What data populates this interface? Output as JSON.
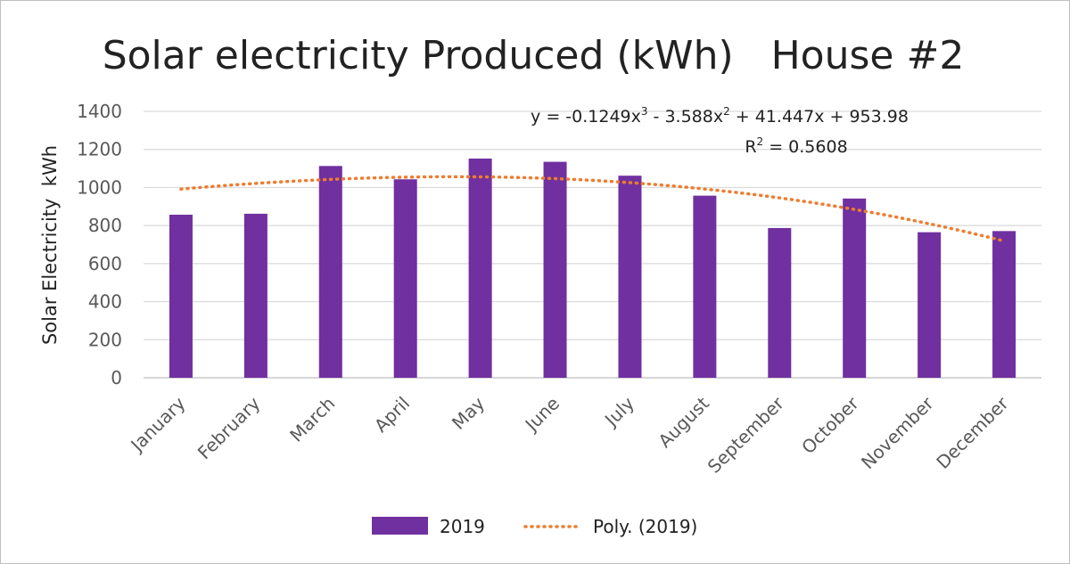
{
  "chart_data": {
    "type": "bar",
    "title": "Solar electricity Produced (kWh)   House #2",
    "xlabel": "",
    "ylabel": "Solar Electricity  kWh",
    "ylim": [
      0,
      1400
    ],
    "yticks": [
      0,
      200,
      400,
      600,
      800,
      1000,
      1200,
      1400
    ],
    "grid": true,
    "categories": [
      "January",
      "February",
      "March",
      "April",
      "May",
      "June",
      "July",
      "August",
      "September",
      "October",
      "November",
      "December"
    ],
    "series": [
      {
        "name": "2019",
        "color": "#7030a0",
        "values": [
          857,
          862,
          1113,
          1043,
          1152,
          1135,
          1062,
          957,
          787,
          942,
          765,
          771
        ]
      }
    ],
    "trendline": {
      "name": "Poly. (2019)",
      "type": "polynomial",
      "order": 3,
      "color": "#ed7d31",
      "coefficients": [
        -0.1249,
        -3.588,
        41.447,
        953.98
      ],
      "equation_text": {
        "prefix": "y = -0.1249x",
        "exp1": "3",
        "mid": " - 3.588x",
        "exp2": "2",
        "suffix": " + 41.447x + 953.98"
      },
      "r2_text": {
        "prefix": "R",
        "exp": "2",
        "suffix": " = 0.5608"
      }
    },
    "legend": {
      "placement": "bottom",
      "entries": [
        "2019",
        "Poly. (2019)"
      ]
    }
  }
}
